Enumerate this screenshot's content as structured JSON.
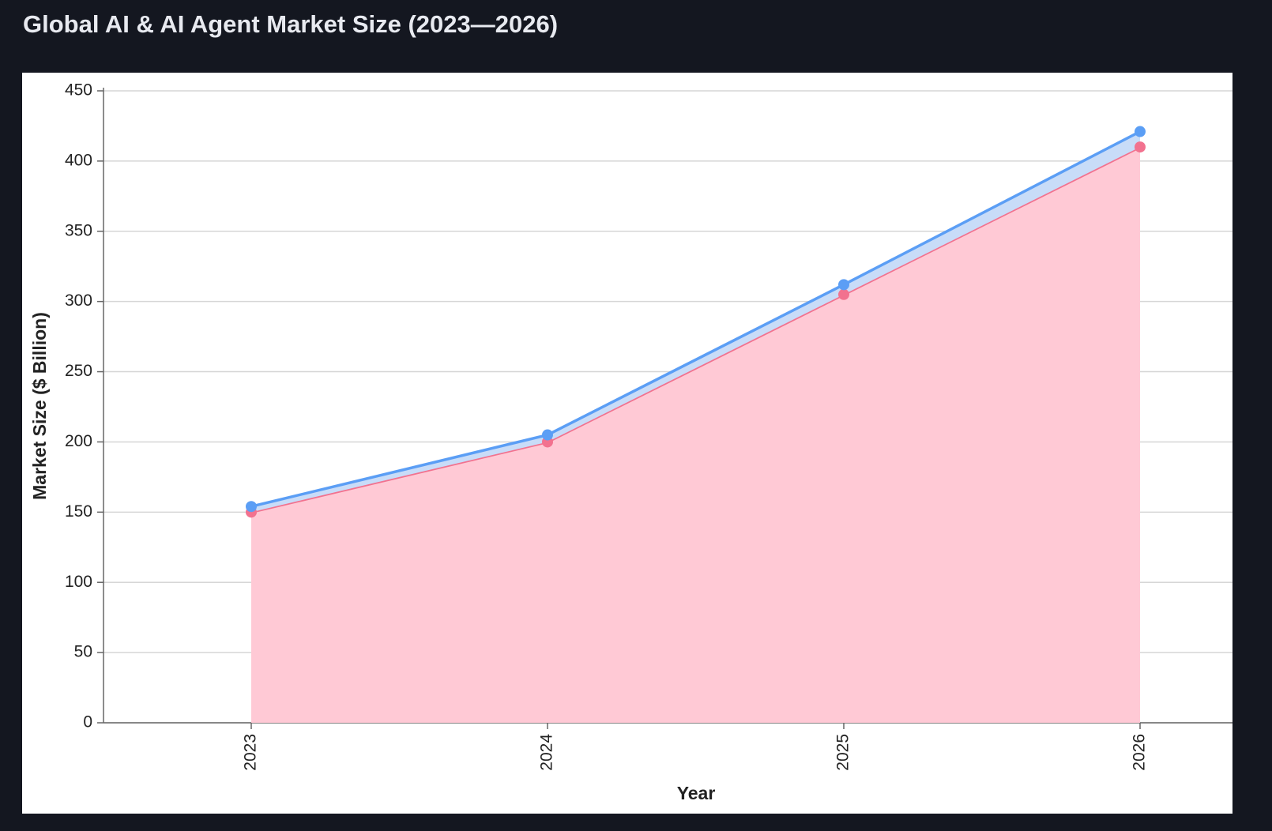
{
  "chart_data": {
    "type": "stacked-area",
    "title": "Global AI & AI Agent Market Size (2023—2026)",
    "x_label": "Year",
    "y_label": "Market Size ($ Billion)",
    "categories": [
      "2023",
      "2024",
      "2025",
      "2026"
    ],
    "series": [
      {
        "color": "#f2728f",
        "values": [
          150,
          200,
          305,
          410
        ]
      },
      {
        "color": "#5b9ef5",
        "values": [
          4,
          5,
          7,
          11
        ]
      }
    ],
    "ylim": [
      0,
      450
    ],
    "yticks": [
      0,
      50,
      100,
      150,
      200,
      250,
      300,
      350,
      400,
      450
    ],
    "grid": true
  }
}
